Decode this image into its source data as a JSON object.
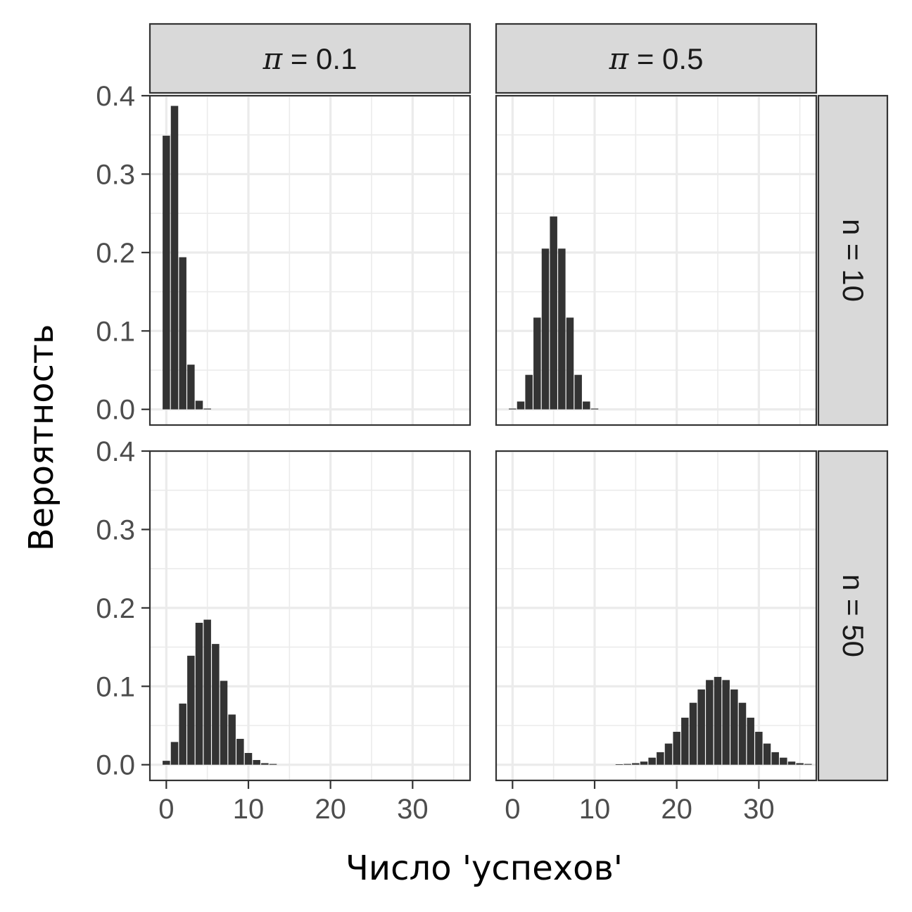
{
  "chart_data": {
    "type": "bar",
    "xlabel": "Число 'успехов'",
    "ylabel": "Вероятность",
    "xlim": [
      -2,
      37
    ],
    "ylim": [
      -0.02,
      0.4
    ],
    "x_ticks": [
      "0",
      "10",
      "20",
      "30"
    ],
    "y_ticks": [
      "0.0",
      "0.1",
      "0.2",
      "0.3",
      "0.4"
    ],
    "grid": true,
    "bar_color": "#333333",
    "col_facets": [
      {
        "symbol": "π",
        "label": "= 0.1",
        "pi": 0.1
      },
      {
        "symbol": "π",
        "label": "= 0.5",
        "pi": 0.5
      }
    ],
    "row_facets": [
      {
        "label": "n = 10",
        "n": 10
      },
      {
        "label": "n = 50",
        "n": 50
      }
    ],
    "panels": [
      {
        "row": 0,
        "col": 0,
        "x": [
          0,
          1,
          2,
          3,
          4,
          5
        ],
        "values": [
          0.349,
          0.387,
          0.194,
          0.057,
          0.011,
          0.001
        ]
      },
      {
        "row": 0,
        "col": 1,
        "x": [
          0,
          1,
          2,
          3,
          4,
          5,
          6,
          7,
          8,
          9,
          10
        ],
        "values": [
          0.001,
          0.01,
          0.044,
          0.117,
          0.205,
          0.246,
          0.205,
          0.117,
          0.044,
          0.01,
          0.001
        ]
      },
      {
        "row": 1,
        "col": 0,
        "x": [
          0,
          1,
          2,
          3,
          4,
          5,
          6,
          7,
          8,
          9,
          10,
          11,
          12,
          13
        ],
        "values": [
          0.005,
          0.029,
          0.078,
          0.139,
          0.181,
          0.185,
          0.154,
          0.107,
          0.064,
          0.033,
          0.015,
          0.006,
          0.002,
          0.001
        ]
      },
      {
        "row": 1,
        "col": 1,
        "x": [
          13,
          14,
          15,
          16,
          17,
          18,
          19,
          20,
          21,
          22,
          23,
          24,
          25,
          26,
          27,
          28,
          29,
          30,
          31,
          32,
          33,
          34,
          35,
          36
        ],
        "values": [
          0.0005,
          0.001,
          0.002,
          0.004,
          0.009,
          0.016,
          0.027,
          0.042,
          0.06,
          0.079,
          0.096,
          0.108,
          0.112,
          0.108,
          0.096,
          0.079,
          0.06,
          0.042,
          0.027,
          0.016,
          0.009,
          0.004,
          0.002,
          0.001
        ]
      }
    ]
  }
}
